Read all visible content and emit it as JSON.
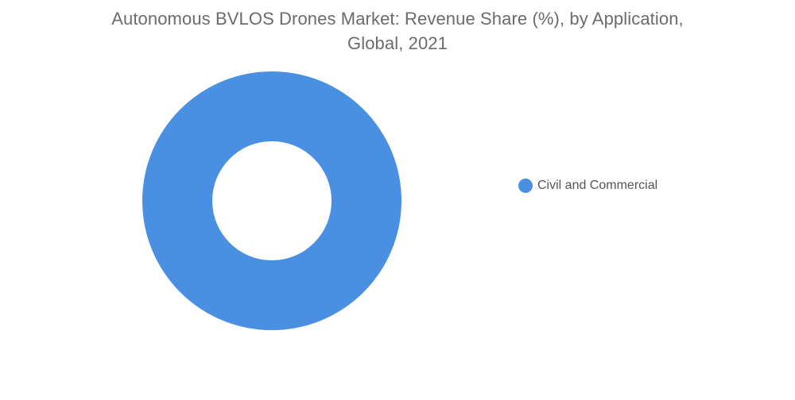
{
  "chart_data": {
    "type": "pie",
    "title_line1": "Autonomous BVLOS Drones Market: Revenue Share (%), by Application,",
    "title_line2": "Global, 2021",
    "categories": [
      "Civil and Commercial"
    ],
    "values": [
      100
    ],
    "colors": [
      "#4a90e2"
    ],
    "legend_position": "right",
    "style": "donut"
  }
}
